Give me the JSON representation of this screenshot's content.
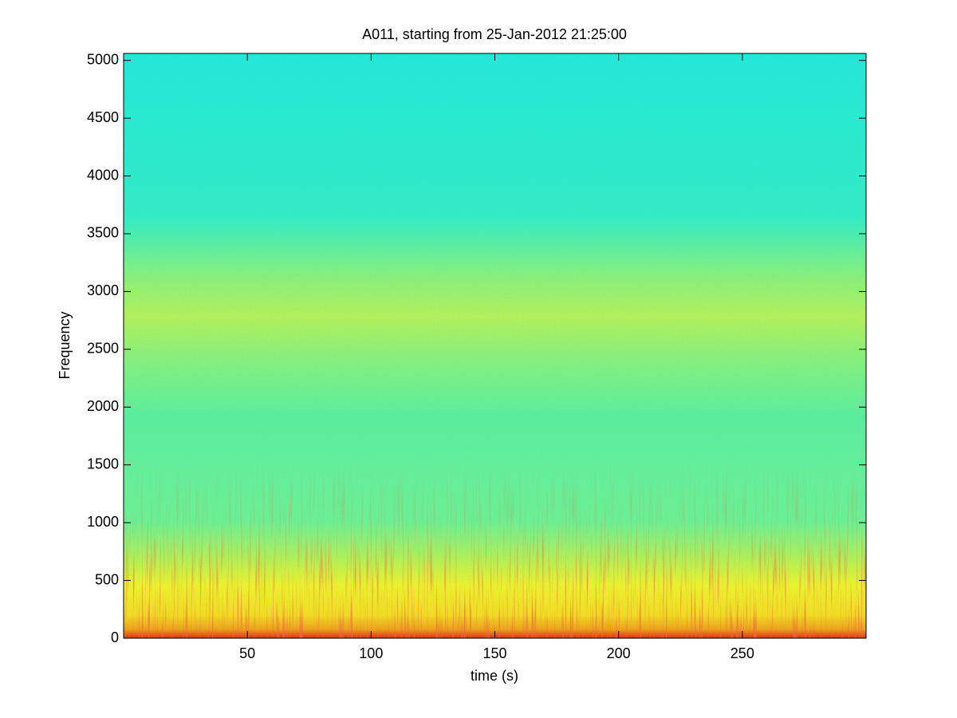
{
  "chart_data": {
    "type": "spectrogram",
    "title": "A011, starting from 25-Jan-2012 21:25:00",
    "xlabel": "time (s)",
    "ylabel": "Frequency",
    "xlim": [
      0,
      300
    ],
    "xticks": [
      50,
      100,
      150,
      200,
      250
    ],
    "ylim": [
      0,
      5060
    ],
    "yticks": [
      0,
      500,
      1000,
      1500,
      2000,
      2500,
      3000,
      3500,
      4000,
      4500,
      5000
    ]
  }
}
